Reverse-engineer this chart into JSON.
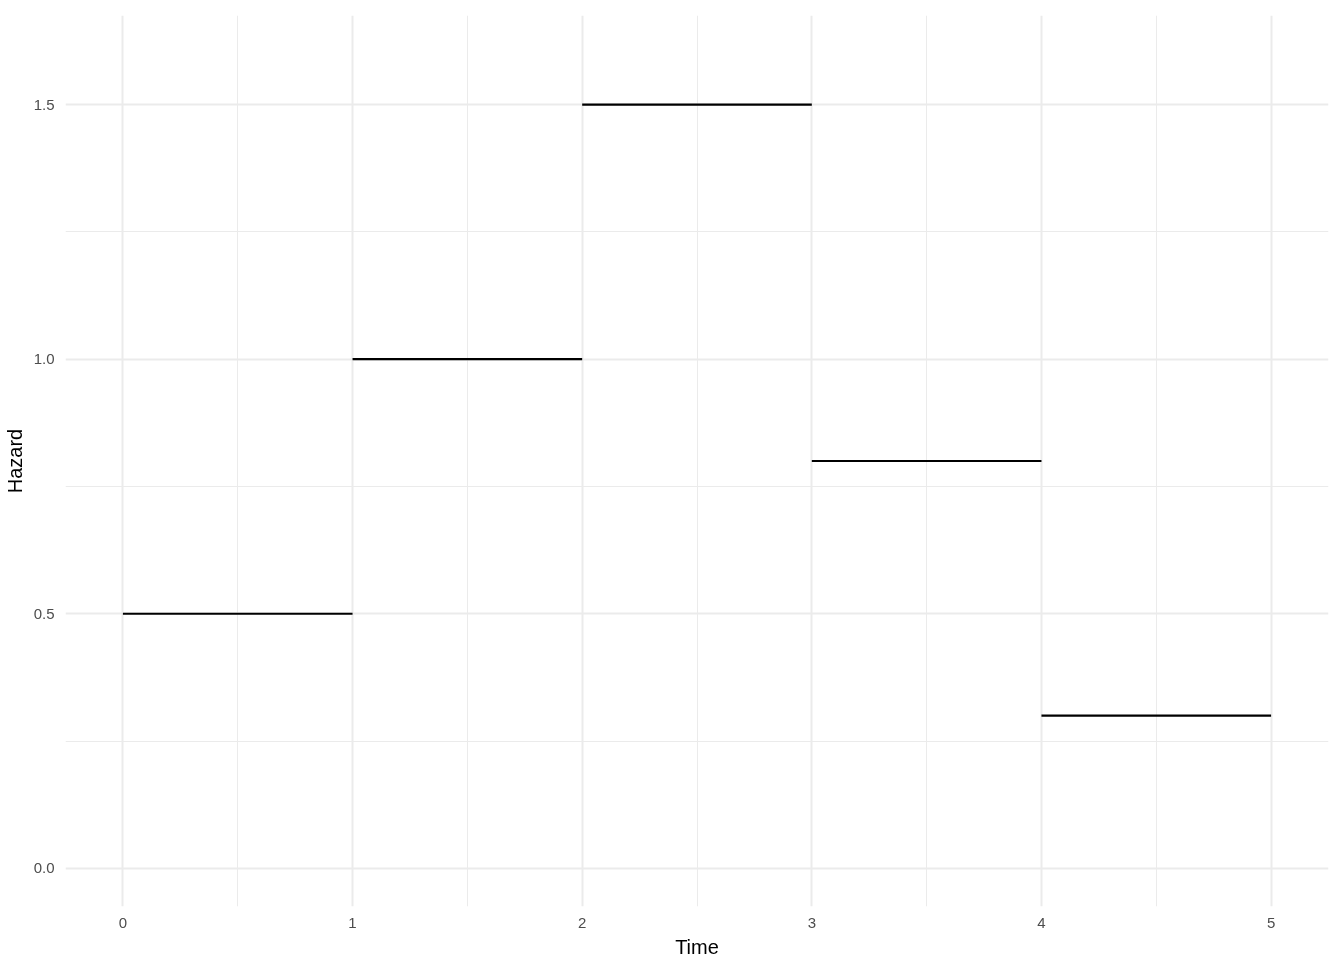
{
  "chart_data": {
    "type": "line",
    "xlabel": "Time",
    "ylabel": "Hazard",
    "series": [
      {
        "color": "#000000",
        "x": [
          0,
          1
        ],
        "values": [
          0.5,
          0.5
        ]
      },
      {
        "color": "#000000",
        "x": [
          1,
          2
        ],
        "values": [
          1.0,
          1.0
        ]
      },
      {
        "color": "#000000",
        "x": [
          2,
          3
        ],
        "values": [
          1.5,
          1.5
        ]
      },
      {
        "color": "#000000",
        "x": [
          3,
          4
        ],
        "values": [
          0.8,
          0.8
        ]
      },
      {
        "color": "#000000",
        "x": [
          4,
          5
        ],
        "values": [
          0.3,
          0.3
        ]
      }
    ],
    "xlim": [
      -0.25,
      5.25
    ],
    "ylim": [
      -0.075,
      1.675
    ],
    "xticks": [
      0,
      1,
      2,
      3,
      4,
      5
    ],
    "yticks": [
      {
        "value": 0,
        "label": "0.0"
      },
      {
        "value": 0.5,
        "label": "0.5"
      },
      {
        "value": 1.0,
        "label": "1.0"
      },
      {
        "value": 1.5,
        "label": "1.5"
      }
    ],
    "grid": true,
    "marker": "none",
    "line_style": "solid"
  }
}
